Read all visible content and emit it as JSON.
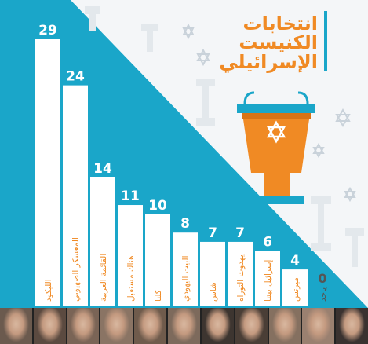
{
  "header": {
    "title_line1": "انتخابات",
    "title_line2": "الكنيست",
    "title_line3": "الإسرائيلي"
  },
  "colors": {
    "teal": "#1aa6c9",
    "orange": "#f08a24",
    "bar": "#ffffff",
    "value_text": "#ffffff",
    "label_text": "#f08a24",
    "zero_text": "#555555",
    "decor": "#dde3e8"
  },
  "chart_data": {
    "type": "bar",
    "title": "انتخابات الكنيست الإسرائيلي",
    "categories": [
      "الليكود",
      "المعسكر الصهيوني",
      "القائمة العربية",
      "هناك مستقبل",
      "كلنا",
      "البيت اليهودي",
      "شاس",
      "يهدوت التوراة",
      "إسرائيل بيتنا",
      "ميرتس",
      "ياحد"
    ],
    "values": [
      29,
      24,
      14,
      11,
      10,
      8,
      7,
      7,
      6,
      4,
      0
    ],
    "ylim": [
      0,
      29
    ],
    "grid": false,
    "legend": "none"
  },
  "portraits": [
    {
      "name": "portrait-likud",
      "tone": "#6b5a4e"
    },
    {
      "name": "portrait-zionist-camp",
      "tone": "#5b4a40"
    },
    {
      "name": "portrait-arab-list",
      "tone": "#7a6456"
    },
    {
      "name": "portrait-yesh-atid",
      "tone": "#8a7464"
    },
    {
      "name": "portrait-kulanu",
      "tone": "#6f5b4c"
    },
    {
      "name": "portrait-jewish-home",
      "tone": "#7d6a5c"
    },
    {
      "name": "portrait-shas",
      "tone": "#3d3530"
    },
    {
      "name": "portrait-utj",
      "tone": "#4a3e36"
    },
    {
      "name": "portrait-yisrael-beytenu",
      "tone": "#857060"
    },
    {
      "name": "portrait-meretz",
      "tone": "#9a8070"
    },
    {
      "name": "portrait-yachad",
      "tone": "#3a3230"
    }
  ]
}
